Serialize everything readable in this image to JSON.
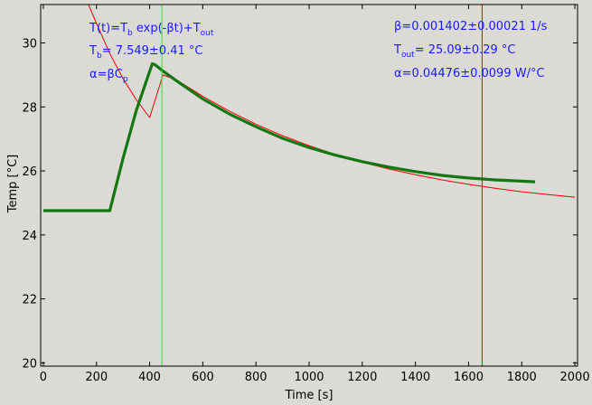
{
  "chart_data": {
    "type": "line",
    "title": "",
    "xlabel": "Time [s]",
    "ylabel": "Temp [°C]",
    "xlim": [
      -10,
      2010
    ],
    "ylim": [
      19.9,
      31.2
    ],
    "xticks": [
      "0",
      "200",
      "400",
      "600",
      "800",
      "1000",
      "1200",
      "1400",
      "1600",
      "1800",
      "2000"
    ],
    "yticks": [
      "20",
      "22",
      "24",
      "26",
      "28",
      "30"
    ],
    "grid": false,
    "background": "#dcdad5",
    "series": [
      {
        "color": "#117711",
        "kind": "measured",
        "x": [
          0,
          100,
          200,
          250,
          300,
          350,
          410,
          420,
          450,
          500,
          600,
          700,
          800,
          900,
          1000,
          1100,
          1200,
          1300,
          1400,
          1500,
          1600,
          1700,
          1800,
          1850
        ],
        "y": [
          24.76,
          24.76,
          24.76,
          24.76,
          26.4,
          27.9,
          29.35,
          29.32,
          29.12,
          28.82,
          28.25,
          27.78,
          27.38,
          27.02,
          26.73,
          26.49,
          26.29,
          26.12,
          25.98,
          25.86,
          25.78,
          25.72,
          25.68,
          25.66
        ]
      },
      {
        "color": "#ee0000",
        "kind": "fit",
        "x": [
          170,
          200,
          250,
          300,
          350,
          400,
          450,
          500,
          600,
          700,
          800,
          900,
          1000,
          1100,
          1200,
          1300,
          1400,
          1500,
          1600,
          1700,
          1800,
          1900,
          2000
        ],
        "y": [
          31.24,
          30.61,
          29.67,
          28.88,
          28.22,
          27.67,
          29.0,
          28.85,
          28.33,
          27.87,
          27.46,
          27.1,
          26.79,
          26.51,
          26.27,
          26.06,
          25.88,
          25.72,
          25.58,
          25.46,
          25.35,
          25.26,
          25.18
        ]
      }
    ],
    "vlines": [
      {
        "x": 446,
        "color": "#33dd33"
      },
      {
        "x": 1651,
        "color": "#ee0000"
      }
    ],
    "annotations": {
      "formula": {
        "pre": "T(t)=T",
        "sub1": "b",
        "mid": " exp(-βt)+T",
        "sub2": "out"
      },
      "tb": {
        "pre": "T",
        "sub": "b",
        "post": "= 7.549±0.41 °C"
      },
      "alpha_def": {
        "pre": "α=βC",
        "sub": "p"
      },
      "beta": "β=0.001402±0.00021 1/s",
      "tout": {
        "pre": "T",
        "sub": "out",
        "post": "= 25.09±0.29 °C"
      },
      "alpha_val": "α=0.04476±0.0099 W/°C"
    }
  }
}
